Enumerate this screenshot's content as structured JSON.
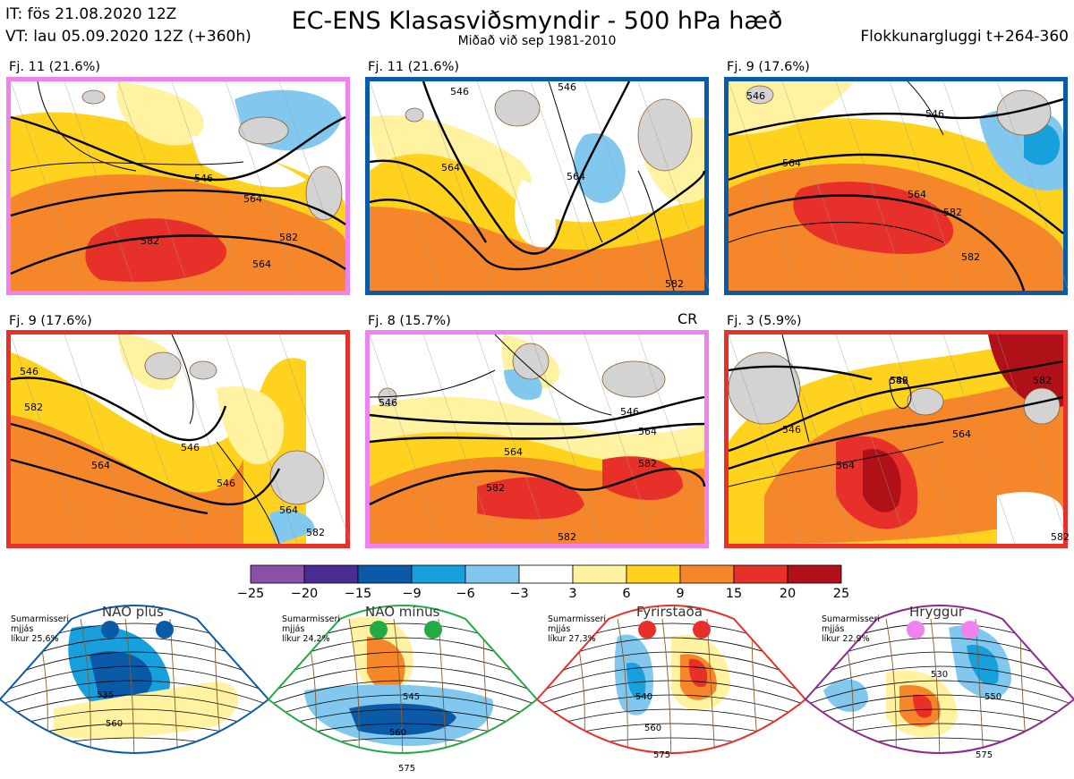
{
  "header": {
    "it_line": "IT: fös 21.08.2020 12Z",
    "vt_line": "VT: lau 05.09.2020 12Z  (+360h)",
    "title": "EC-ENS Klasasviðsmyndir - 500 hPa hæð",
    "subtitle": "Miðað við sep 1981-2010",
    "window": "Flokkunargluggi t+264-360"
  },
  "panels": [
    {
      "label": "Fj. 11 (21.6%)",
      "border": "#ee82ee",
      "contours": [
        "546",
        "564",
        "564",
        "582",
        "582"
      ]
    },
    {
      "label": "Fj. 11 (21.6%)",
      "border": "#0b5aa8",
      "contours": [
        "546",
        "546",
        "564",
        "564",
        "582"
      ]
    },
    {
      "label": "Fj. 9 (17.6%)",
      "border": "#0b5aa8",
      "contours": [
        "546",
        "546",
        "564",
        "564",
        "582",
        "582"
      ]
    },
    {
      "label": "Fj. 9 (17.6%)",
      "border": "#e8302a",
      "contours": [
        "546",
        "546",
        "546",
        "564",
        "564",
        "582",
        "582"
      ]
    },
    {
      "label": "Fj. 8 (15.7%)",
      "border": "#ee82ee",
      "marker": "CR",
      "contours": [
        "546",
        "546",
        "564",
        "564",
        "582",
        "582",
        "582"
      ]
    },
    {
      "label": "Fj. 3 (5.9%)",
      "border": "#e8302a",
      "contours": [
        "546",
        "546",
        "564",
        "564",
        "582",
        "582",
        "582"
      ]
    }
  ],
  "colorbar": {
    "ticks": [
      "−25",
      "−20",
      "−15",
      "−9",
      "−6",
      "−3",
      "3",
      "6",
      "9",
      "15",
      "20",
      "25"
    ],
    "colors": [
      "#8b4fa8",
      "#4a2c92",
      "#0b5aa8",
      "#17a0dc",
      "#82c8ee",
      "#ffffff",
      "#fff2a0",
      "#ffd21e",
      "#f5872a",
      "#e8302a",
      "#b01018"
    ]
  },
  "regimes": [
    {
      "name": "NAO plús",
      "info": [
        "Sumarmisseri",
        "mjjás",
        "líkur 25,6%"
      ],
      "color": "#0b5aa8",
      "contours": [
        "535",
        "560"
      ]
    },
    {
      "name": "NAO mínus",
      "info": [
        "Sumarmisseri",
        "mjjás",
        "líkur 24,2%"
      ],
      "color": "#22aa44",
      "contours": [
        "545",
        "560",
        "575"
      ]
    },
    {
      "name": "Fyrirstaða",
      "info": [
        "Sumarmisseri",
        "mjjás",
        "líkur 27,3%"
      ],
      "color": "#e8302a",
      "contours": [
        "540",
        "560",
        "575"
      ]
    },
    {
      "name": "Hryggur",
      "info": [
        "Sumarmisseri",
        "mjjás",
        "líkur 22,9%"
      ],
      "color": "#ee82ee",
      "border": "#8b2a8b",
      "contours": [
        "530",
        "550",
        "575"
      ]
    }
  ]
}
